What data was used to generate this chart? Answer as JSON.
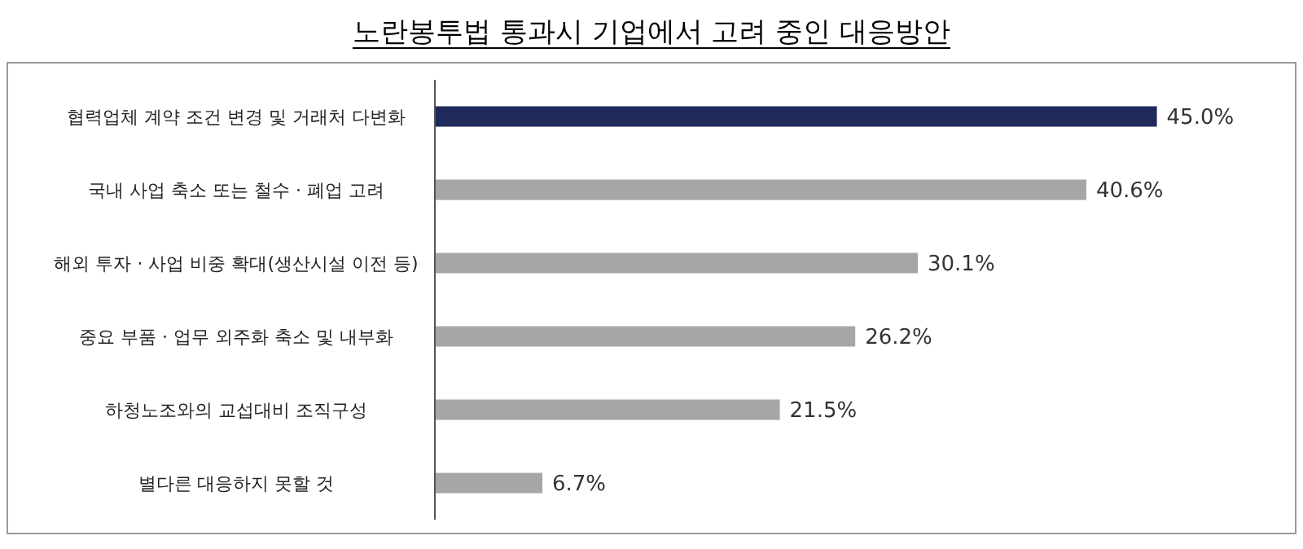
{
  "chart_data": {
    "type": "bar",
    "orientation": "horizontal",
    "title": "노란봉투법 통과시 기업에서 고려 중인 대응방안",
    "categories": [
      "협력업체 계약 조건 변경 및 거래처 다변화",
      "국내 사업 축소 또는 철수 · 폐업 고려",
      "해외 투자 · 사업 비중 확대(생산시설 이전 등)",
      "중요 부품 · 업무 외주화 축소 및 내부화",
      "하청노조와의 교섭대비 조직구성",
      "별다른 대응하지 못할 것"
    ],
    "values": [
      45.0,
      40.6,
      30.1,
      26.2,
      21.5,
      6.7
    ],
    "colors": [
      "#1f2a5c",
      "#a6a6a6",
      "#a6a6a6",
      "#a6a6a6",
      "#a6a6a6",
      "#a6a6a6"
    ],
    "value_labels": [
      "45.0%",
      "40.6%",
      "30.1%",
      "26.2%",
      "21.5%",
      "6.7%"
    ],
    "grid": false,
    "legend": false
  }
}
